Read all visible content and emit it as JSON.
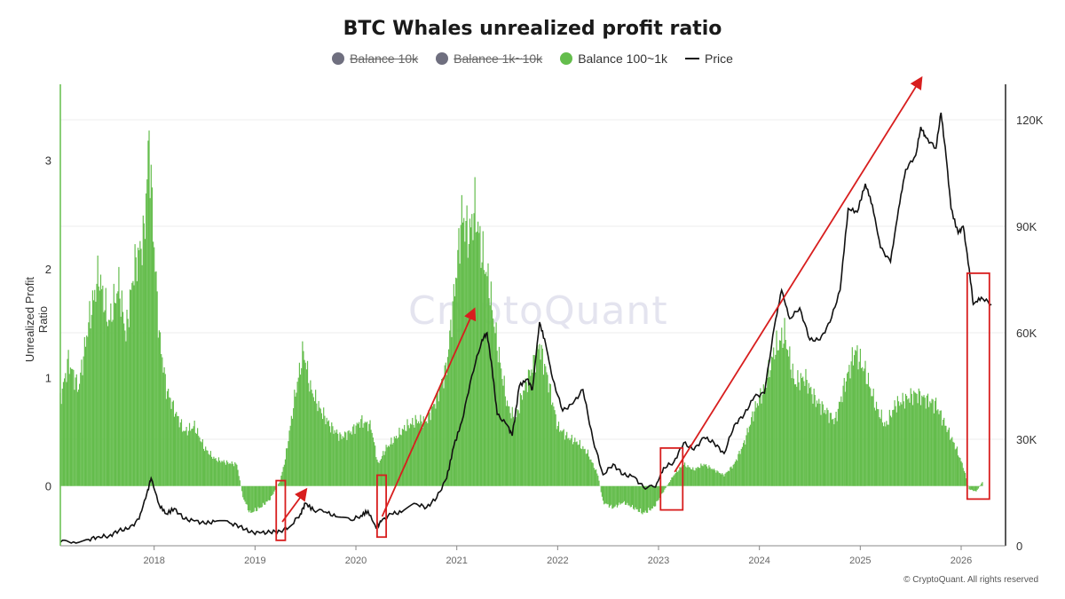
{
  "chart_data": {
    "type": "bar",
    "title": "BTC Whales unrealized profit ratio",
    "ylabel": "Unrealized Profit Ratio",
    "y_left_ticks": [
      "0",
      "1",
      "2",
      "3"
    ],
    "y_left_range": [
      -0.55,
      3.7
    ],
    "y_right_ticks": [
      "0",
      "30K",
      "60K",
      "90K",
      "120K"
    ],
    "y_right_range": [
      0,
      130000
    ],
    "x_ticks": [
      "2018",
      "2019",
      "2020",
      "2021",
      "2022",
      "2023",
      "2024",
      "2025",
      "2026"
    ],
    "x_range": [
      2017.07,
      2026.44
    ],
    "legend": [
      {
        "name": "Balance 10k",
        "color": "#6f6f7f",
        "hidden": true
      },
      {
        "name": "Balance 1k~10k",
        "color": "#6f6f7f",
        "hidden": true
      },
      {
        "name": "Balance 100~1k",
        "color": "#64bd4c",
        "hidden": false
      },
      {
        "name": "Price",
        "color": "#111111",
        "type": "line"
      }
    ],
    "series": [
      {
        "name": "Balance 100~1k",
        "axis": "left",
        "points": [
          [
            2017.07,
            0.8
          ],
          [
            2017.15,
            1.15
          ],
          [
            2017.25,
            0.9
          ],
          [
            2017.35,
            1.5
          ],
          [
            2017.45,
            1.95
          ],
          [
            2017.55,
            1.5
          ],
          [
            2017.65,
            1.85
          ],
          [
            2017.72,
            1.4
          ],
          [
            2017.8,
            2.0
          ],
          [
            2017.9,
            2.3
          ],
          [
            2017.95,
            3.2
          ],
          [
            2018.0,
            2.2
          ],
          [
            2018.05,
            1.4
          ],
          [
            2018.12,
            0.9
          ],
          [
            2018.2,
            0.7
          ],
          [
            2018.3,
            0.5
          ],
          [
            2018.4,
            0.55
          ],
          [
            2018.5,
            0.35
          ],
          [
            2018.6,
            0.25
          ],
          [
            2018.7,
            0.22
          ],
          [
            2018.82,
            0.2
          ],
          [
            2018.88,
            -0.1
          ],
          [
            2018.95,
            -0.25
          ],
          [
            2019.05,
            -0.2
          ],
          [
            2019.15,
            -0.12
          ],
          [
            2019.25,
            0.05
          ],
          [
            2019.3,
            0.25
          ],
          [
            2019.4,
            0.85
          ],
          [
            2019.48,
            1.25
          ],
          [
            2019.55,
            0.9
          ],
          [
            2019.65,
            0.7
          ],
          [
            2019.75,
            0.55
          ],
          [
            2019.85,
            0.45
          ],
          [
            2019.95,
            0.5
          ],
          [
            2020.05,
            0.6
          ],
          [
            2020.15,
            0.55
          ],
          [
            2020.22,
            0.2
          ],
          [
            2020.3,
            0.35
          ],
          [
            2020.4,
            0.45
          ],
          [
            2020.5,
            0.55
          ],
          [
            2020.6,
            0.6
          ],
          [
            2020.7,
            0.6
          ],
          [
            2020.8,
            0.8
          ],
          [
            2020.9,
            1.1
          ],
          [
            2021.0,
            2.0
          ],
          [
            2021.05,
            2.5
          ],
          [
            2021.12,
            2.3
          ],
          [
            2021.18,
            2.55
          ],
          [
            2021.25,
            2.15
          ],
          [
            2021.32,
            1.85
          ],
          [
            2021.4,
            1.3
          ],
          [
            2021.5,
            0.75
          ],
          [
            2021.58,
            0.6
          ],
          [
            2021.65,
            0.85
          ],
          [
            2021.75,
            1.1
          ],
          [
            2021.82,
            1.3
          ],
          [
            2021.9,
            1.0
          ],
          [
            2022.0,
            0.55
          ],
          [
            2022.1,
            0.45
          ],
          [
            2022.2,
            0.4
          ],
          [
            2022.3,
            0.3
          ],
          [
            2022.4,
            0.1
          ],
          [
            2022.45,
            -0.15
          ],
          [
            2022.55,
            -0.2
          ],
          [
            2022.65,
            -0.15
          ],
          [
            2022.75,
            -0.2
          ],
          [
            2022.85,
            -0.25
          ],
          [
            2022.95,
            -0.2
          ],
          [
            2023.05,
            -0.05
          ],
          [
            2023.15,
            0.1
          ],
          [
            2023.25,
            0.2
          ],
          [
            2023.35,
            0.15
          ],
          [
            2023.45,
            0.2
          ],
          [
            2023.55,
            0.15
          ],
          [
            2023.65,
            0.1
          ],
          [
            2023.75,
            0.2
          ],
          [
            2023.85,
            0.4
          ],
          [
            2023.95,
            0.7
          ],
          [
            2024.05,
            0.9
          ],
          [
            2024.15,
            1.25
          ],
          [
            2024.25,
            1.4
          ],
          [
            2024.35,
            0.95
          ],
          [
            2024.45,
            1.0
          ],
          [
            2024.55,
            0.8
          ],
          [
            2024.65,
            0.7
          ],
          [
            2024.75,
            0.6
          ],
          [
            2024.85,
            0.95
          ],
          [
            2024.95,
            1.25
          ],
          [
            2025.05,
            1.05
          ],
          [
            2025.15,
            0.75
          ],
          [
            2025.25,
            0.55
          ],
          [
            2025.35,
            0.75
          ],
          [
            2025.45,
            0.8
          ],
          [
            2025.55,
            0.85
          ],
          [
            2025.65,
            0.8
          ],
          [
            2025.75,
            0.75
          ],
          [
            2025.85,
            0.55
          ],
          [
            2025.95,
            0.35
          ],
          [
            2026.02,
            0.18
          ],
          [
            2026.08,
            -0.03
          ],
          [
            2026.15,
            -0.05
          ],
          [
            2026.22,
            0.05
          ]
        ]
      },
      {
        "name": "Price",
        "axis": "right",
        "points": [
          [
            2017.07,
            1000
          ],
          [
            2017.2,
            1100
          ],
          [
            2017.35,
            1800
          ],
          [
            2017.45,
            2600
          ],
          [
            2017.55,
            2700
          ],
          [
            2017.65,
            4300
          ],
          [
            2017.75,
            4800
          ],
          [
            2017.85,
            7500
          ],
          [
            2017.93,
            15000
          ],
          [
            2017.97,
            19000
          ],
          [
            2018.05,
            11500
          ],
          [
            2018.12,
            9000
          ],
          [
            2018.2,
            10500
          ],
          [
            2018.3,
            7500
          ],
          [
            2018.4,
            7000
          ],
          [
            2018.5,
            6300
          ],
          [
            2018.6,
            6800
          ],
          [
            2018.75,
            6400
          ],
          [
            2018.85,
            5500
          ],
          [
            2018.95,
            3800
          ],
          [
            2019.05,
            3600
          ],
          [
            2019.15,
            3800
          ],
          [
            2019.25,
            4100
          ],
          [
            2019.35,
            5500
          ],
          [
            2019.45,
            9000
          ],
          [
            2019.5,
            12000
          ],
          [
            2019.58,
            10000
          ],
          [
            2019.7,
            9500
          ],
          [
            2019.8,
            8200
          ],
          [
            2019.95,
            7200
          ],
          [
            2020.05,
            8500
          ],
          [
            2020.12,
            9800
          ],
          [
            2020.2,
            5000
          ],
          [
            2020.25,
            6800
          ],
          [
            2020.35,
            9000
          ],
          [
            2020.45,
            9400
          ],
          [
            2020.6,
            11800
          ],
          [
            2020.7,
            10800
          ],
          [
            2020.8,
            13500
          ],
          [
            2020.9,
            19000
          ],
          [
            2020.97,
            28000
          ],
          [
            2021.05,
            35000
          ],
          [
            2021.15,
            48000
          ],
          [
            2021.25,
            58000
          ],
          [
            2021.3,
            60000
          ],
          [
            2021.35,
            50000
          ],
          [
            2021.4,
            37000
          ],
          [
            2021.5,
            34000
          ],
          [
            2021.55,
            31000
          ],
          [
            2021.62,
            45000
          ],
          [
            2021.7,
            47000
          ],
          [
            2021.75,
            44000
          ],
          [
            2021.82,
            63000
          ],
          [
            2021.88,
            57000
          ],
          [
            2021.95,
            47000
          ],
          [
            2022.05,
            38000
          ],
          [
            2022.15,
            40000
          ],
          [
            2022.25,
            44000
          ],
          [
            2022.35,
            30000
          ],
          [
            2022.45,
            20000
          ],
          [
            2022.55,
            23000
          ],
          [
            2022.65,
            20000
          ],
          [
            2022.75,
            19500
          ],
          [
            2022.85,
            16500
          ],
          [
            2022.97,
            16500
          ],
          [
            2023.05,
            22000
          ],
          [
            2023.15,
            23500
          ],
          [
            2023.25,
            29000
          ],
          [
            2023.35,
            27000
          ],
          [
            2023.45,
            30500
          ],
          [
            2023.55,
            29000
          ],
          [
            2023.65,
            26000
          ],
          [
            2023.75,
            34000
          ],
          [
            2023.85,
            37000
          ],
          [
            2023.95,
            42000
          ],
          [
            2024.05,
            43000
          ],
          [
            2024.15,
            62000
          ],
          [
            2024.22,
            72000
          ],
          [
            2024.3,
            64000
          ],
          [
            2024.4,
            67000
          ],
          [
            2024.5,
            58000
          ],
          [
            2024.6,
            58000
          ],
          [
            2024.7,
            63000
          ],
          [
            2024.8,
            72000
          ],
          [
            2024.88,
            95000
          ],
          [
            2024.97,
            94000
          ],
          [
            2025.05,
            102000
          ],
          [
            2025.12,
            96000
          ],
          [
            2025.2,
            84000
          ],
          [
            2025.3,
            80000
          ],
          [
            2025.38,
            95000
          ],
          [
            2025.45,
            106000
          ],
          [
            2025.55,
            110000
          ],
          [
            2025.6,
            118000
          ],
          [
            2025.65,
            115000
          ],
          [
            2025.75,
            112000
          ],
          [
            2025.8,
            122000
          ],
          [
            2025.85,
            110000
          ],
          [
            2025.9,
            95000
          ],
          [
            2025.97,
            88000
          ],
          [
            2026.02,
            90000
          ],
          [
            2026.08,
            78000
          ],
          [
            2026.12,
            68000
          ],
          [
            2026.2,
            70000
          ],
          [
            2026.3,
            68000
          ]
        ]
      }
    ],
    "annotations": {
      "boxes": [
        {
          "x0": 2019.21,
          "x1": 2019.3,
          "y0": -0.5,
          "y1": 0.05
        },
        {
          "x0": 2020.21,
          "x1": 2020.3,
          "y0": -0.47,
          "y1": 0.1
        },
        {
          "x0": 2023.02,
          "x1": 2023.24,
          "y0": -0.22,
          "y1": 0.35
        },
        {
          "x0": 2026.06,
          "x1": 2026.28,
          "y0": -0.12,
          "y1": 1.96
        }
      ],
      "arrows": [
        {
          "x0": 2019.27,
          "y0": -0.33,
          "x1": 2019.5,
          "y1": -0.04
        },
        {
          "x0": 2020.26,
          "y0": -0.28,
          "x1": 2021.17,
          "y1": 1.62
        },
        {
          "x0": 2023.16,
          "y0": 0.13,
          "x1": 2025.6,
          "y1": 3.75
        }
      ],
      "color": "#d81e1e"
    }
  },
  "watermark": "CryptoQuant",
  "credit": "© CryptoQuant. All rights reserved"
}
